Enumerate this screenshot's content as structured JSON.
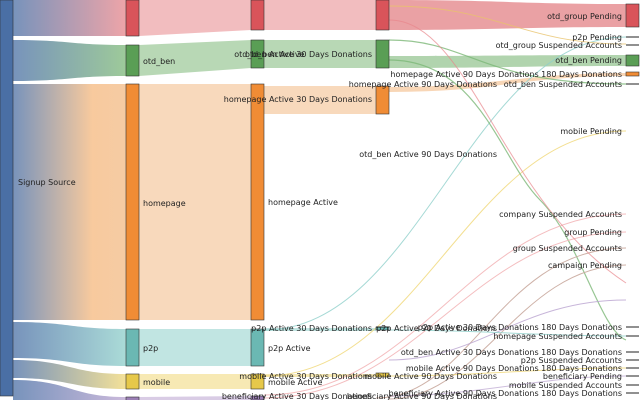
{
  "diagram": {
    "type": "sankey",
    "nodes": [
      {
        "id": "signup_source",
        "label": "Signup Source",
        "color": "#4a6fa5"
      },
      {
        "id": "otd_group",
        "label": "otd_group",
        "color": "#d9545a"
      },
      {
        "id": "otd_ben",
        "label": "otd_ben",
        "color": "#5a9e55"
      },
      {
        "id": "homepage",
        "label": "homepage",
        "color": "#f08c35"
      },
      {
        "id": "p2p",
        "label": "p2p",
        "color": "#6bb8b3"
      },
      {
        "id": "mobile",
        "label": "mobile",
        "color": "#e6c84a"
      },
      {
        "id": "beneficiary",
        "label": "",
        "color": "#9b7fb5"
      },
      {
        "id": "otd_group_active",
        "label": "",
        "color": "#d9545a"
      },
      {
        "id": "otd_ben_active",
        "label": "otd_ben Active",
        "color": "#5a9e55"
      },
      {
        "id": "homepage_active",
        "label": "homepage Active",
        "color": "#f08c35"
      },
      {
        "id": "p2p_active",
        "label": "p2p Active",
        "color": "#6bb8b3"
      },
      {
        "id": "mobile_active",
        "label": "mobile Active",
        "color": "#e6c84a"
      },
      {
        "id": "otd_group_a90",
        "label": "",
        "color": "#d9545a"
      },
      {
        "id": "otd_ben_a30",
        "label": "otd_ben Active 30 Days Donations",
        "color": "#5a9e55"
      },
      {
        "id": "homepage_a30",
        "label": "homepage Active 30 Days Donations",
        "color": "#f08c35"
      },
      {
        "id": "homepage_a90",
        "label": "homepage Active 90 Days Donations",
        "color": "#f08c35"
      },
      {
        "id": "otd_ben_a90",
        "label": "otd_ben Active 90 Days Donations",
        "color": "#5a9e55"
      },
      {
        "id": "p2p_a30",
        "label": "p2p Active 30 Days Donations",
        "color": "#6bb8b3"
      },
      {
        "id": "p2p_a90",
        "label": "p2p Active 90 Days Donations",
        "color": "#6bb8b3"
      },
      {
        "id": "mobile_a30",
        "label": "mobile Active 30 Days Donations",
        "color": "#e6c84a"
      },
      {
        "id": "mobile_a90",
        "label": "mobile Active 90 Days Donations",
        "color": "#e6c84a"
      },
      {
        "id": "ben_a30",
        "label": "beneficiary Active 30 Days Donations",
        "color": "#9b7fb5"
      },
      {
        "id": "ben_a90",
        "label": "beneficiary Active 90 Days Donations",
        "color": "#9b7fb5"
      },
      {
        "id": "otd_group_pending",
        "label": "otd_group Pending",
        "color": "#d9545a"
      },
      {
        "id": "p2p_pending",
        "label": "p2p Pending",
        "color": "#6bb8b3"
      },
      {
        "id": "otd_group_susp",
        "label": "otd_group Suspended Accounts",
        "color": "#d9545a"
      },
      {
        "id": "otd_ben_pending",
        "label": "otd_ben Pending",
        "color": "#5a9e55"
      },
      {
        "id": "homepage_a90_180",
        "label": "homepage Active 90 Days Donations 180 Days Donations",
        "color": "#f08c35"
      },
      {
        "id": "otd_ben_susp",
        "label": "otd_ben Suspended Accounts",
        "color": "#5a9e55"
      },
      {
        "id": "mobile_pending",
        "label": "mobile Pending",
        "color": "#e6c84a"
      },
      {
        "id": "company_susp",
        "label": "company Suspended Accounts",
        "color": "#c0504d"
      },
      {
        "id": "group_pending",
        "label": "group Pending",
        "color": "#c0504d"
      },
      {
        "id": "group_susp",
        "label": "group Suspended Accounts",
        "color": "#c0504d"
      },
      {
        "id": "campaign_pending",
        "label": "campaign Pending",
        "color": "#c0504d"
      },
      {
        "id": "p2p_a30_180",
        "label": "p2p Active 30 Days Donations 180 Days Donations",
        "color": "#6bb8b3"
      },
      {
        "id": "homepage_susp",
        "label": "homepage Suspended Accounts",
        "color": "#f08c35"
      },
      {
        "id": "otd_ben_a30_180",
        "label": "otd_ben Active 30 Days Donations 180 Days Donations",
        "color": "#5a9e55"
      },
      {
        "id": "p2p_susp",
        "label": "p2p Suspended Accounts",
        "color": "#6bb8b3"
      },
      {
        "id": "mobile_a90_180",
        "label": "mobile Active 90 Days Donations 180 Days Donations",
        "color": "#e6c84a"
      },
      {
        "id": "ben_pending",
        "label": "beneficiary Pending",
        "color": "#9b7fb5"
      },
      {
        "id": "mobile_susp",
        "label": "mobile Suspended Accounts",
        "color": "#e6c84a"
      },
      {
        "id": "ben_a90_180",
        "label": "beneficiary Active 90 Days Donations 180 Days Donations",
        "color": "#9b7fb5"
      }
    ],
    "links": [
      {
        "source": "signup_source",
        "target": "otd_group"
      },
      {
        "source": "signup_source",
        "target": "otd_ben"
      },
      {
        "source": "signup_source",
        "target": "homepage"
      },
      {
        "source": "signup_source",
        "target": "p2p"
      },
      {
        "source": "signup_source",
        "target": "mobile"
      },
      {
        "source": "signup_source",
        "target": "beneficiary"
      },
      {
        "source": "otd_group",
        "target": "otd_group_active"
      },
      {
        "source": "otd_ben",
        "target": "otd_ben_active"
      },
      {
        "source": "homepage",
        "target": "homepage_active"
      },
      {
        "source": "p2p",
        "target": "p2p_active"
      },
      {
        "source": "mobile",
        "target": "mobile_active"
      },
      {
        "source": "beneficiary",
        "target": "ben_a30"
      },
      {
        "source": "otd_group_active",
        "target": "otd_group_a90"
      },
      {
        "source": "otd_ben_active",
        "target": "otd_ben_a30"
      },
      {
        "source": "homepage_active",
        "target": "homepage_a30"
      },
      {
        "source": "otd_group_a90",
        "target": "otd_group_pending"
      },
      {
        "source": "otd_ben_a30",
        "target": "otd_ben_pending"
      },
      {
        "source": "homepage_a30",
        "target": "homepage_a90"
      },
      {
        "source": "p2p_active",
        "target": "p2p_a30"
      },
      {
        "source": "mobile_active",
        "target": "mobile_a30"
      }
    ]
  }
}
